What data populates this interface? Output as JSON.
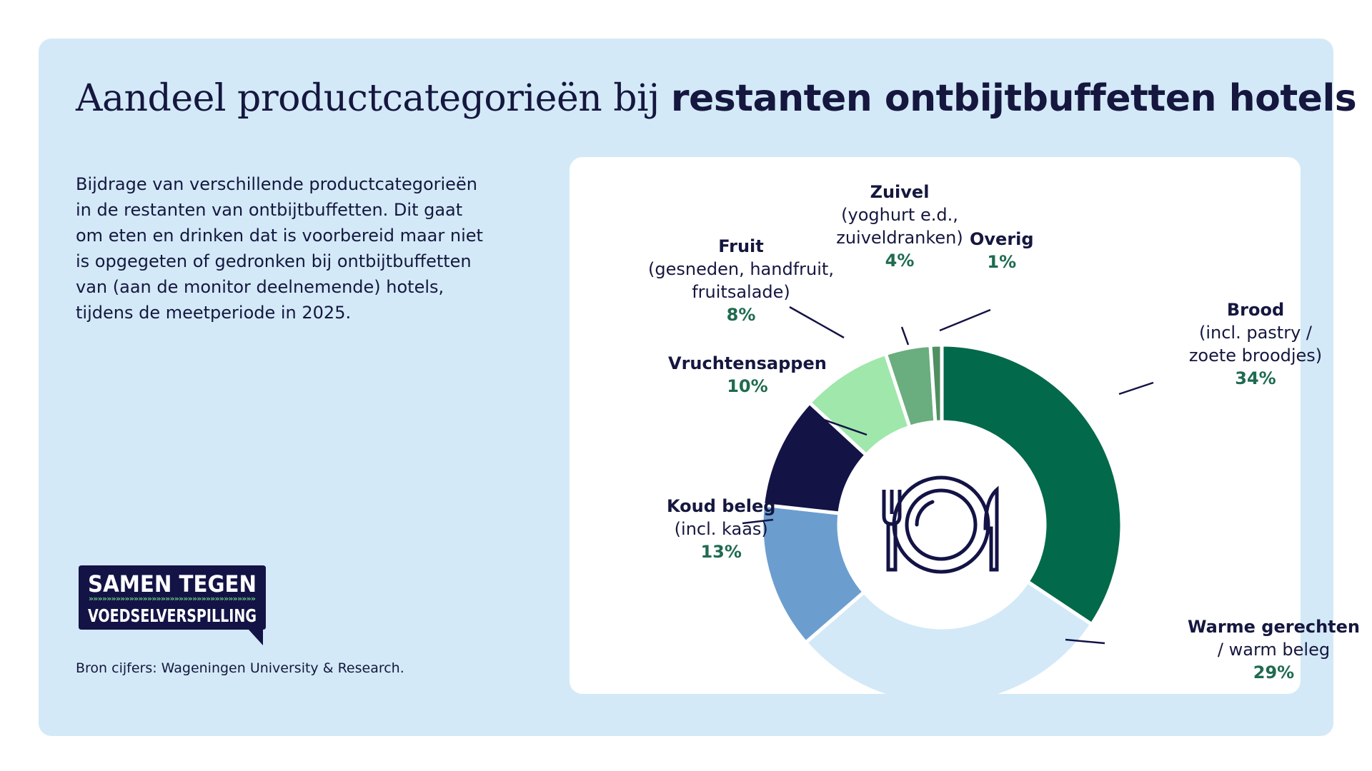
{
  "title": {
    "regular": "Aandeel productcategorieën bij",
    "bold": "restanten ontbijtbuffetten hotels"
  },
  "description": "Bijdrage van verschillende productcategorieën in de restanten van ontbijtbuffetten. Dit gaat om eten en drinken dat is voorbereid maar niet is opgegeten of gedronken bij ontbijtbuffetten van (aan de monitor deelnemende) hotels, tijdens de meetperiode in 2025.",
  "logo": {
    "line1": "SAMEN TEGEN",
    "line2": "VOEDSELVERSPILLING"
  },
  "source": "Bron cijfers: Wageningen University & Research.",
  "chart_data": {
    "type": "pie",
    "style": "donut",
    "center_icon": "plate-with-fork-and-knife-icon",
    "slices": [
      {
        "name": "Brood",
        "sub": "(incl. pastry / zoete broodjes)",
        "value": 34,
        "pct": "34%",
        "color": "#02694a"
      },
      {
        "name": "Warme gerechten",
        "sub": "/ warm beleg",
        "value": 29,
        "pct": "29%",
        "color": "#d3e9f7"
      },
      {
        "name": "Koud beleg",
        "sub": "(incl. kaas)",
        "value": 13,
        "pct": "13%",
        "color": "#6b9ecf"
      },
      {
        "name": "Vruchtensappen",
        "sub": "",
        "value": 10,
        "pct": "10%",
        "color": "#131346"
      },
      {
        "name": "Fruit",
        "sub": "(gesneden, handfruit, fruitsalade)",
        "value": 8,
        "pct": "8%",
        "color": "#9fe7ab"
      },
      {
        "name": "Zuivel",
        "sub": "(yoghurt e.d., zuiveldranken)",
        "value": 4,
        "pct": "4%",
        "color": "#6aad7e"
      },
      {
        "name": "Overig",
        "sub": "",
        "value": 1,
        "pct": "1%",
        "color": "#4f8f60"
      }
    ]
  }
}
